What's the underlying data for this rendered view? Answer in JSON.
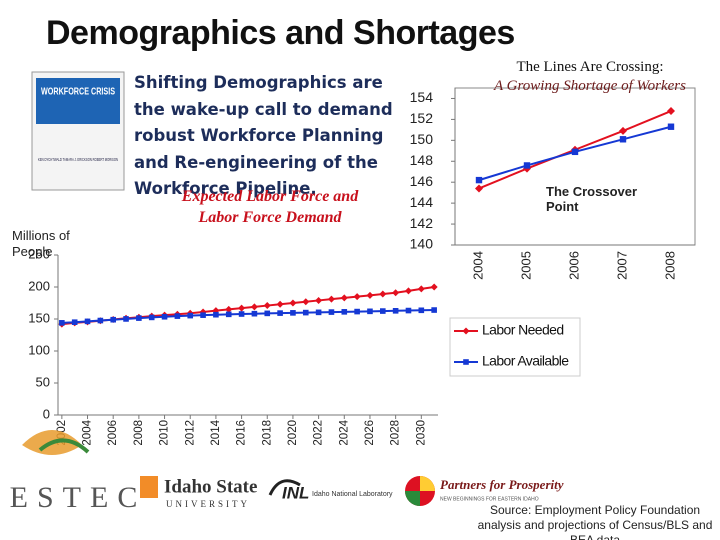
{
  "title": "Demographics and Shortages",
  "book": {
    "title": "WORKFORCE CRISIS",
    "authors": "KEN DYCHTWALD TAMARA J. ERICKSON ROBERT MORISON"
  },
  "text": "Shifting Demographics are the wake-up call to demand robust Workforce Planning and Re-engineering of the Workforce Pipeline.",
  "chart_data": [
    {
      "type": "line",
      "annotation": "Expected Labor Force and Labor Force Demand",
      "y_label": "Millions of People",
      "x": [
        2002,
        2003,
        2004,
        2005,
        2006,
        2007,
        2008,
        2009,
        2010,
        2011,
        2012,
        2013,
        2014,
        2015,
        2016,
        2017,
        2018,
        2019,
        2020,
        2021,
        2022,
        2023,
        2024,
        2025,
        2026,
        2027,
        2028,
        2029,
        2030,
        2031
      ],
      "xlim": [
        2001.7,
        2031.3
      ],
      "xticks": [
        2002,
        2004,
        2006,
        2008,
        2010,
        2012,
        2014,
        2016,
        2018,
        2020,
        2022,
        2024,
        2026,
        2028,
        2030
      ],
      "ylim": [
        0,
        250
      ],
      "yticks": [
        0,
        50,
        100,
        150,
        200,
        250
      ],
      "legend": "right",
      "series": [
        {
          "name": "Labor Needed",
          "color": "#e3101f",
          "marker": "diamond",
          "values": [
            142,
            144,
            145.5,
            147.3,
            149.2,
            151.1,
            152.8,
            154.5,
            156,
            157.5,
            159,
            161,
            163,
            165,
            167,
            169,
            171,
            173,
            175,
            177,
            179,
            181,
            183,
            185,
            187,
            189,
            191,
            194,
            197,
            200
          ]
        },
        {
          "name": "Labor Available",
          "color": "#1538d4",
          "marker": "square",
          "values": [
            144,
            145,
            146.3,
            147.6,
            148.9,
            150.1,
            151.4,
            152.5,
            153.5,
            154.5,
            155.3,
            156,
            156.7,
            157.3,
            157.8,
            158.3,
            158.8,
            159.2,
            159.6,
            160,
            160.4,
            160.8,
            161.2,
            161.6,
            162,
            162.4,
            162.8,
            163.2,
            163.6,
            164
          ]
        }
      ]
    },
    {
      "type": "line",
      "title": "The Lines Are Crossing:",
      "subtitle": "A Growing Shortage of Workers",
      "annotation": "The Crossover Point",
      "categories": [
        "2004",
        "2005",
        "2006",
        "2007",
        "2008"
      ],
      "ylim": [
        140,
        155
      ],
      "yticks": [
        140,
        142,
        144,
        146,
        148,
        150,
        152,
        154
      ],
      "series": [
        {
          "color": "#e3101f",
          "marker": "diamond",
          "values": [
            145.4,
            147.3,
            149.1,
            150.9,
            152.8
          ]
        },
        {
          "color": "#1538d4",
          "marker": "square",
          "values": [
            146.2,
            147.6,
            148.9,
            150.1,
            151.3
          ]
        }
      ]
    }
  ],
  "logos": {
    "estec": "ESTEC",
    "isu": "Idaho State",
    "isu_sub": "UNIVERSITY",
    "inl": "INL",
    "inl_sub": "Idaho National Laboratory",
    "partners": "Partners for Prosperity",
    "partners_sub": "NEW BEGINNINGS FOR EASTERN IDAHO"
  },
  "source": "Source: Employment Policy Foundation analysis and projections of Census/BLS and BEA data"
}
